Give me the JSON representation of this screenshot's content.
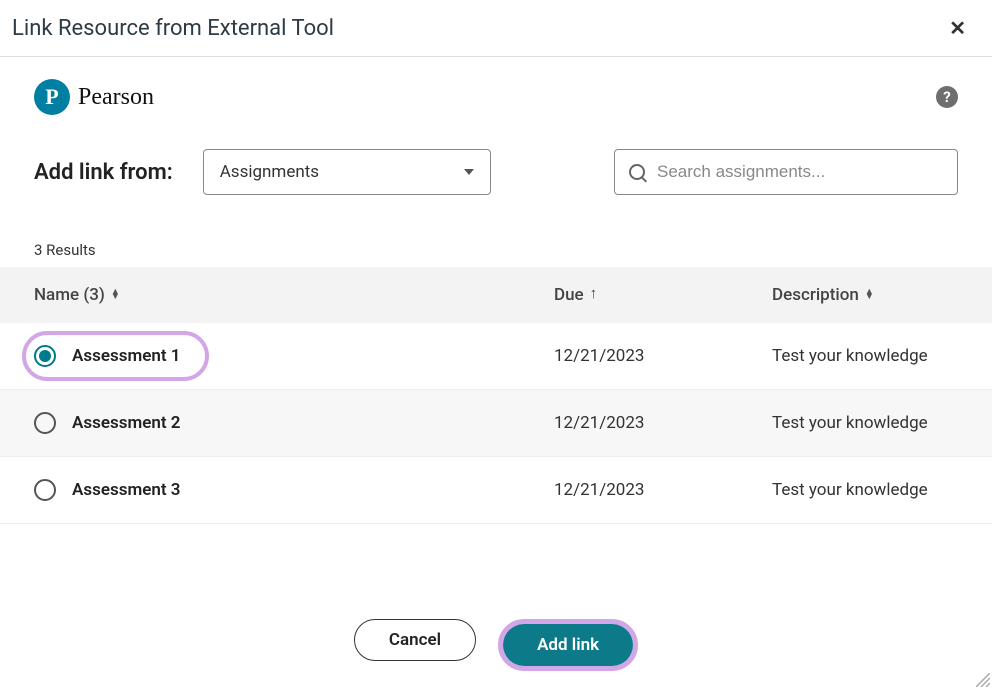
{
  "dialog": {
    "title": "Link Resource from External Tool"
  },
  "brand": {
    "logo_letter": "P",
    "name": "Pearson"
  },
  "help": {
    "glyph": "?"
  },
  "filter": {
    "label": "Add link from:",
    "selected": "Assignments"
  },
  "search": {
    "placeholder": "Search assignments..."
  },
  "results": {
    "count_text": "3 Results",
    "columns": {
      "name": "Name (3)",
      "due": "Due",
      "desc": "Description"
    },
    "rows": [
      {
        "name": "Assessment 1",
        "due": "12/21/2023",
        "desc": "Test your knowledge",
        "selected": true
      },
      {
        "name": "Assessment 2",
        "due": "12/21/2023",
        "desc": "Test your knowledge",
        "selected": false
      },
      {
        "name": "Assessment 3",
        "due": "12/21/2023",
        "desc": "Test your knowledge",
        "selected": false
      }
    ]
  },
  "footer": {
    "cancel": "Cancel",
    "add": "Add link"
  },
  "colors": {
    "accent": "#0d7a8a",
    "highlight": "#d3a6e8"
  }
}
